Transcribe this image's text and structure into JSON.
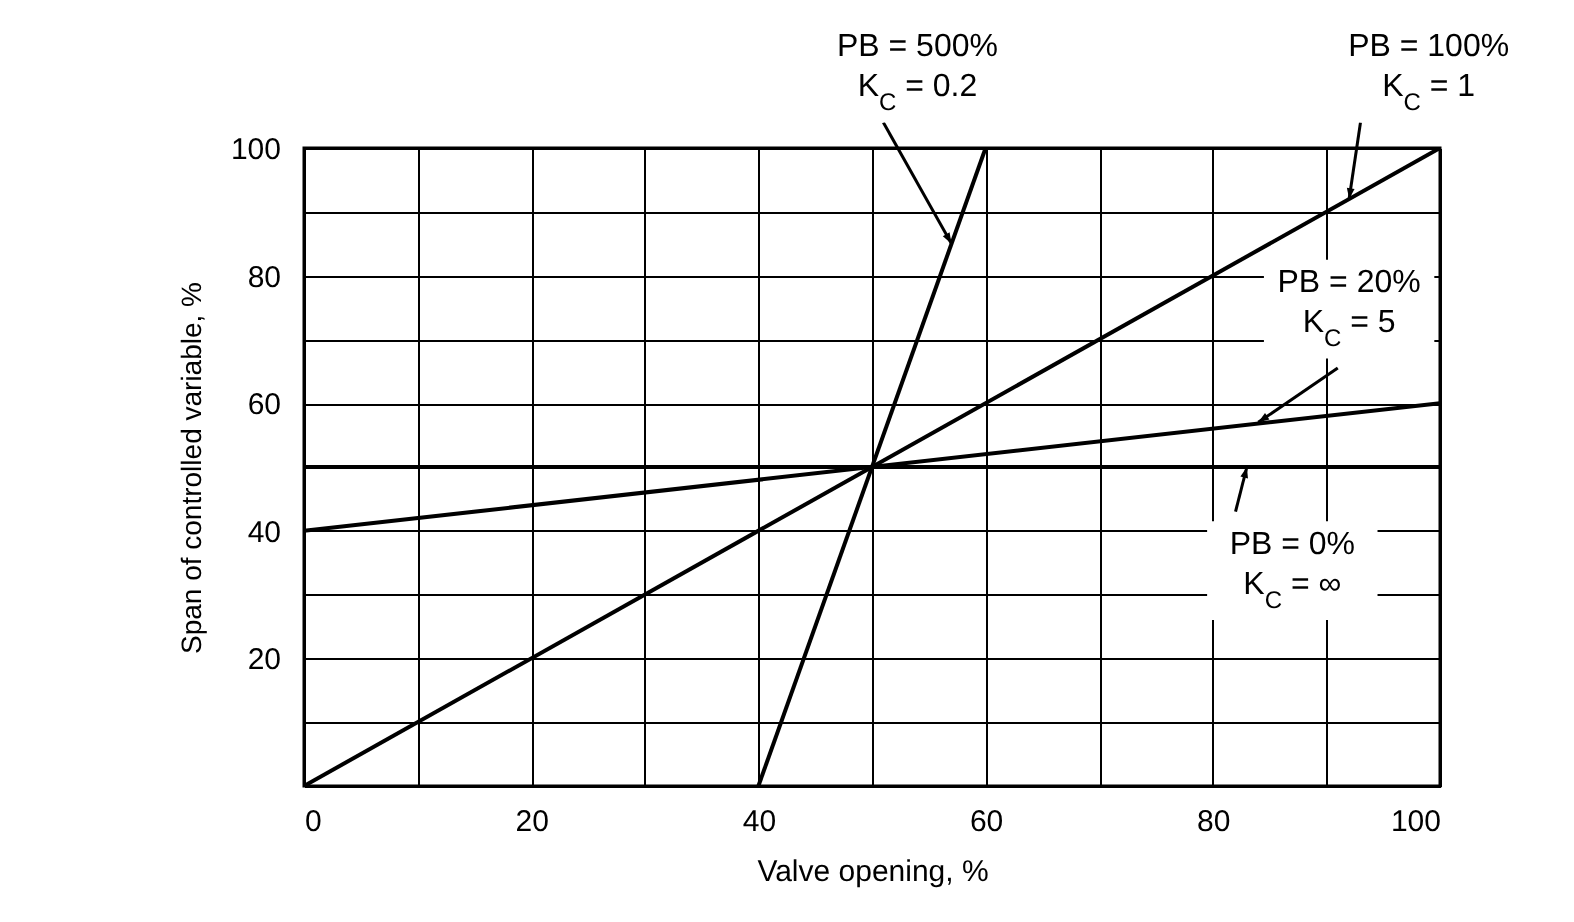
{
  "chart_data": {
    "type": "line",
    "xlabel": "Valve opening, %",
    "ylabel": "Span of controlled variable, %",
    "xlim": [
      0,
      100
    ],
    "ylim": [
      0,
      100
    ],
    "xticks": [
      0,
      {
        "value": 10,
        "label": null
      },
      20,
      {
        "value": 30,
        "label": null
      },
      40,
      {
        "value": 50,
        "label": null
      },
      60,
      {
        "value": 70,
        "label": null
      },
      80,
      {
        "value": 90,
        "label": null
      },
      100
    ],
    "yticks": [
      {
        "value": 0,
        "label": null
      },
      {
        "value": 10,
        "label": null
      },
      20,
      {
        "value": 30,
        "label": null
      },
      40,
      60,
      {
        "value": 70,
        "label": null
      },
      80,
      {
        "value": 90,
        "label": null
      },
      100
    ],
    "grid": true,
    "marker": "none",
    "line_style": "solid",
    "series": [
      {
        "color": "#000000",
        "x": [
          40,
          60
        ],
        "values": [
          0,
          100
        ]
      },
      {
        "color": "#000000",
        "x": [
          0,
          100
        ],
        "values": [
          0,
          100
        ]
      },
      {
        "color": "#000000",
        "x": [
          0,
          100
        ],
        "values": [
          40,
          60
        ]
      },
      {
        "color": "#000000",
        "x": [
          0,
          100
        ],
        "values": [
          50,
          50
        ]
      }
    ],
    "annotations": [
      {
        "text": "PB = 500%\nK$_{C}$ = 0.2",
        "x": 57,
        "y": 85
      },
      {
        "text": "PB = 100%\nK$_{C}$ = 1",
        "x": 92,
        "y": 92
      },
      {
        "text": "PB = 20%\nK$_{C}$ = 5",
        "x": 84,
        "y": 57
      },
      {
        "text": "PB = 0%\nK$_{C}$ = ∞",
        "x": 83,
        "y": 50
      }
    ]
  }
}
